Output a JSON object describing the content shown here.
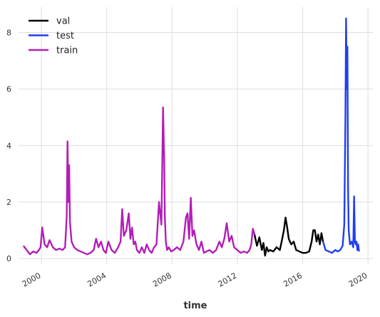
{
  "chart_data": {
    "type": "line",
    "xlabel": "time",
    "ylabel": "",
    "title": "",
    "xlim": [
      1998.6,
      2020.3
    ],
    "ylim": [
      -0.2,
      8.9
    ],
    "x_ticks": [
      2000,
      2004,
      2008,
      2012,
      2016,
      2020
    ],
    "x_tick_labels": [
      "2000",
      "2004",
      "2008",
      "2012",
      "2016",
      "2020"
    ],
    "y_ticks": [
      0,
      2,
      4,
      6,
      8
    ],
    "y_tick_labels": [
      "0",
      "2",
      "4",
      "6",
      "8"
    ],
    "grid": true,
    "legend_position": "top-left",
    "series": [
      {
        "name": "val",
        "color": "#000000",
        "x": [
          2013.05,
          2013.2,
          2013.35,
          2013.5,
          2013.6,
          2013.7,
          2013.8,
          2013.9,
          2014.0,
          2014.2,
          2014.4,
          2014.6,
          2014.75,
          2014.85,
          2014.95,
          2015.05,
          2015.15,
          2015.3,
          2015.45,
          2015.6,
          2015.8,
          2016.0,
          2016.2,
          2016.4,
          2016.55,
          2016.65,
          2016.75,
          2016.85,
          2016.95,
          2017.05,
          2017.15,
          2017.25
        ],
        "y": [
          0.85,
          0.45,
          0.75,
          0.3,
          0.55,
          0.1,
          0.4,
          0.25,
          0.3,
          0.25,
          0.4,
          0.3,
          0.7,
          1.0,
          1.45,
          1.1,
          0.7,
          0.5,
          0.6,
          0.3,
          0.25,
          0.2,
          0.2,
          0.25,
          0.6,
          1.0,
          1.0,
          0.6,
          0.85,
          0.5,
          0.9,
          0.6
        ]
      },
      {
        "name": "test",
        "color": "#1f3ff0",
        "x": [
          2017.25,
          2017.4,
          2017.6,
          2017.8,
          2018.0,
          2018.15,
          2018.3,
          2018.45,
          2018.55,
          2018.62,
          2018.66,
          2018.7,
          2018.74,
          2018.78,
          2018.82,
          2018.9,
          2019.0,
          2019.1,
          2019.15,
          2019.2,
          2019.25,
          2019.3,
          2019.35,
          2019.4,
          2019.45
        ],
        "y": [
          0.6,
          0.3,
          0.25,
          0.2,
          0.3,
          0.25,
          0.3,
          0.45,
          1.2,
          5.0,
          8.5,
          6.0,
          7.5,
          2.5,
          1.0,
          0.5,
          0.6,
          0.4,
          2.2,
          0.6,
          0.5,
          0.6,
          0.3,
          0.5,
          0.25
        ]
      },
      {
        "name": "train",
        "color": "#b31db8",
        "x": [
          1998.9,
          1999.1,
          1999.3,
          1999.5,
          1999.7,
          1999.85,
          1999.95,
          2000.05,
          2000.2,
          2000.35,
          2000.5,
          2000.7,
          2000.9,
          2001.1,
          2001.3,
          2001.45,
          2001.55,
          2001.6,
          2001.65,
          2001.7,
          2001.75,
          2001.85,
          2002.0,
          2002.2,
          2002.4,
          2002.6,
          2002.8,
          2003.0,
          2003.2,
          2003.35,
          2003.5,
          2003.65,
          2003.8,
          2003.95,
          2004.1,
          2004.3,
          2004.5,
          2004.7,
          2004.85,
          2004.95,
          2005.05,
          2005.2,
          2005.35,
          2005.45,
          2005.55,
          2005.65,
          2005.75,
          2005.85,
          2006.0,
          2006.15,
          2006.3,
          2006.45,
          2006.6,
          2006.75,
          2006.9,
          2007.05,
          2007.2,
          2007.35,
          2007.45,
          2007.52,
          2007.56,
          2007.62,
          2007.7,
          2007.8,
          2007.95,
          2008.1,
          2008.3,
          2008.5,
          2008.7,
          2008.85,
          2008.95,
          2009.05,
          2009.15,
          2009.25,
          2009.35,
          2009.5,
          2009.65,
          2009.8,
          2009.95,
          2010.1,
          2010.3,
          2010.5,
          2010.7,
          2010.9,
          2011.05,
          2011.2,
          2011.35,
          2011.5,
          2011.65,
          2011.8,
          2012.0,
          2012.2,
          2012.4,
          2012.6,
          2012.75,
          2012.85,
          2012.95,
          2013.05
        ],
        "y": [
          0.45,
          0.3,
          0.15,
          0.25,
          0.2,
          0.3,
          0.4,
          1.1,
          0.5,
          0.4,
          0.65,
          0.4,
          0.3,
          0.35,
          0.3,
          0.4,
          1.5,
          4.15,
          2.0,
          3.3,
          1.3,
          0.6,
          0.4,
          0.3,
          0.25,
          0.2,
          0.15,
          0.2,
          0.3,
          0.7,
          0.4,
          0.6,
          0.3,
          0.2,
          0.6,
          0.3,
          0.2,
          0.4,
          0.6,
          1.75,
          0.8,
          1.0,
          1.6,
          0.7,
          1.1,
          0.5,
          0.6,
          0.3,
          0.2,
          0.4,
          0.2,
          0.5,
          0.3,
          0.2,
          0.4,
          0.5,
          2.0,
          1.2,
          5.35,
          3.5,
          1.5,
          0.6,
          0.3,
          0.4,
          0.25,
          0.3,
          0.4,
          0.3,
          0.6,
          1.45,
          1.6,
          0.7,
          2.15,
          0.8,
          1.0,
          0.5,
          0.3,
          0.6,
          0.2,
          0.25,
          0.3,
          0.2,
          0.3,
          0.6,
          0.4,
          0.7,
          1.25,
          0.6,
          0.8,
          0.4,
          0.3,
          0.2,
          0.25,
          0.2,
          0.3,
          0.5,
          1.05,
          0.85
        ]
      }
    ]
  }
}
